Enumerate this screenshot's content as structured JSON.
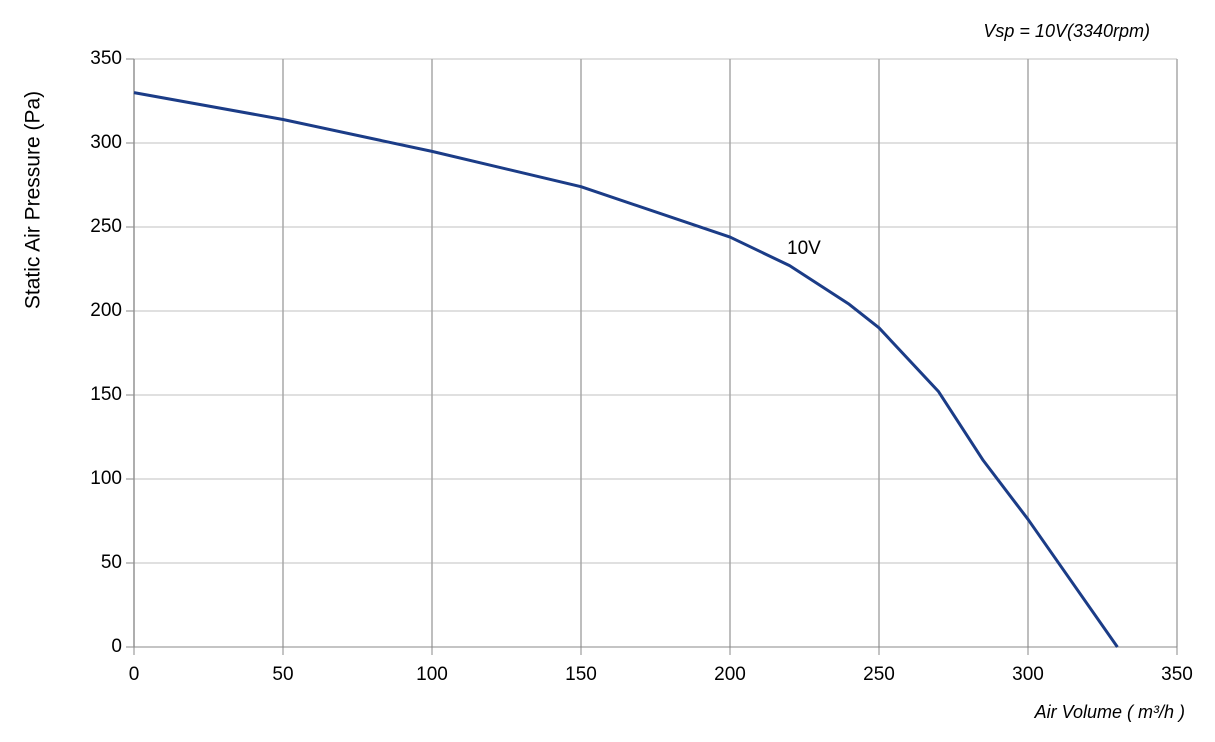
{
  "chart_data": {
    "type": "line",
    "title": "Vsp = 10V(3340rpm)",
    "x_label": "Air Volume ( m³/h )",
    "y_label": "Static Air Pressure  (Pa)",
    "annotation": "10V",
    "x": [
      0,
      50,
      100,
      150,
      200,
      220,
      240,
      250,
      270,
      285,
      300,
      330
    ],
    "series": [
      {
        "name": "10V",
        "color": "#1b3c87",
        "values": [
          330,
          314,
          295,
          274,
          244,
          227,
          204,
          190,
          152,
          111,
          76,
          0
        ]
      }
    ],
    "xlim": [
      0,
      350
    ],
    "xticks": [
      0,
      50,
      100,
      150,
      200,
      250,
      300,
      350
    ],
    "ylim": [
      0,
      350
    ],
    "yticks": [
      0,
      50,
      100,
      150,
      200,
      250,
      300,
      350
    ],
    "grid": true
  }
}
